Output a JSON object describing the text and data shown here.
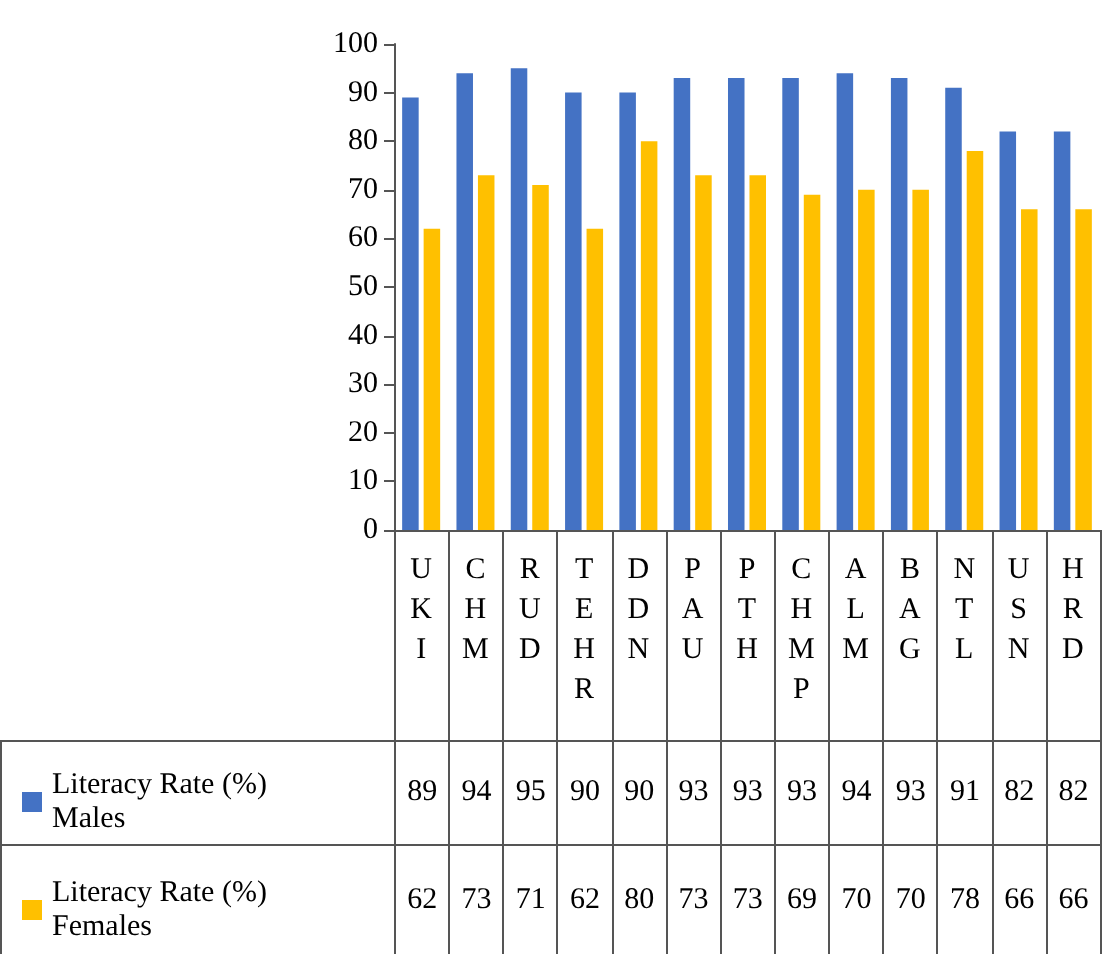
{
  "chart_data": {
    "type": "bar",
    "categories": [
      "UKI",
      "CHM",
      "RUD",
      "TEHR",
      "DDN",
      "PAU",
      "PTH",
      "CHMP",
      "ALM",
      "BAG",
      "NTL",
      "USN",
      "HRD"
    ],
    "series": [
      {
        "name": "Literacy Rate (%) Males",
        "color": "#4472c4",
        "values": [
          89,
          94,
          95,
          90,
          90,
          93,
          93,
          93,
          94,
          93,
          91,
          82,
          82
        ]
      },
      {
        "name": "Literacy Rate (%) Females",
        "color": "#ffc000",
        "values": [
          62,
          73,
          71,
          62,
          80,
          73,
          73,
          69,
          70,
          70,
          78,
          66,
          66
        ]
      }
    ],
    "ylim": [
      0,
      100
    ],
    "yticks": [
      0,
      10,
      20,
      30,
      40,
      50,
      60,
      70,
      80,
      90,
      100
    ],
    "data_labels": true,
    "legend": "bottom left"
  }
}
